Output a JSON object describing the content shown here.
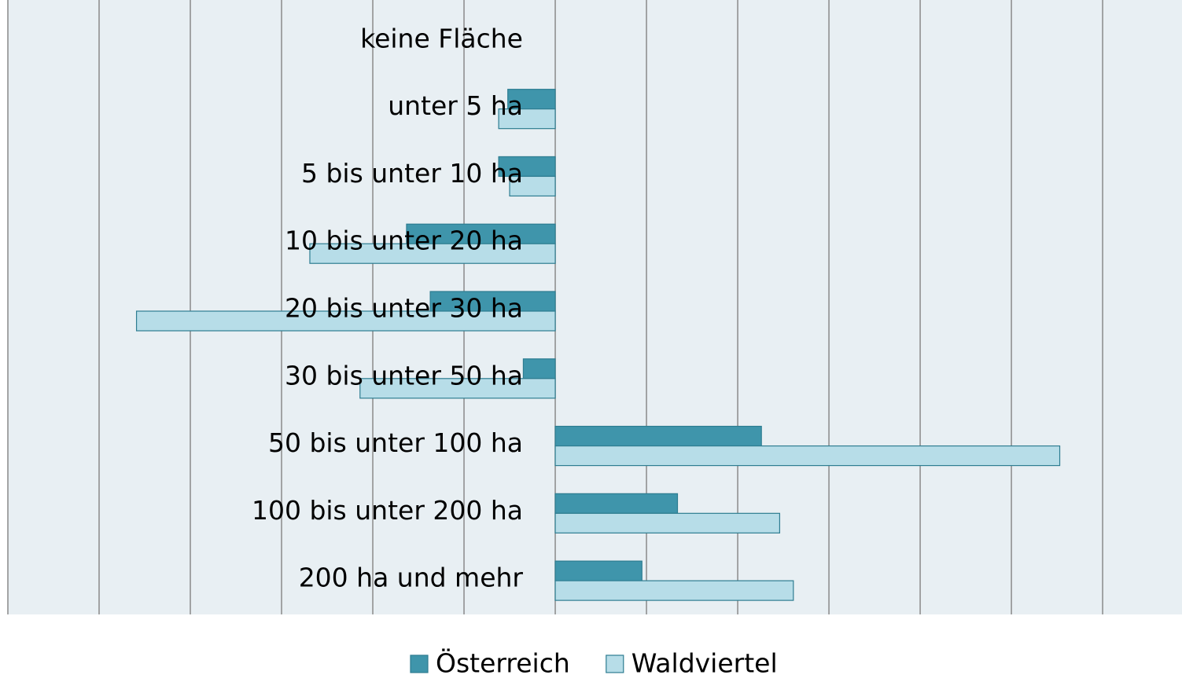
{
  "chart_data": {
    "type": "hbar",
    "categories": [
      "keine Fläche",
      "unter 5 ha",
      "5 bis unter 10 ha",
      "10 bis unter 20 ha",
      "20 bis unter 30 ha",
      "30 bis unter 50 ha",
      "50 bis unter 100 ha",
      "100 bis unter 200 ha",
      "200 ha und mehr"
    ],
    "series": [
      {
        "name": "Österreich",
        "color": "#3f95ab",
        "values": [
          0,
          -0.52,
          -0.62,
          -1.63,
          -1.37,
          -0.35,
          2.26,
          1.34,
          0.95
        ]
      },
      {
        "name": "Waldviertel",
        "color": "#b7dde8",
        "values": [
          0,
          -0.62,
          -0.5,
          -2.69,
          -4.59,
          -2.14,
          5.53,
          2.46,
          2.61
        ]
      }
    ],
    "xlim": [
      -6,
      6.87
    ],
    "xticks": [
      -6,
      -5,
      -4,
      -3,
      -2,
      -1,
      0,
      1,
      2,
      3,
      4,
      5,
      6
    ],
    "grid": true
  }
}
